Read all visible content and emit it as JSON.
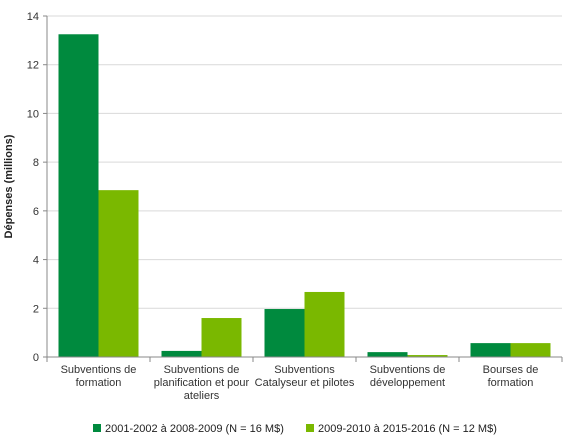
{
  "chart_data": {
    "type": "bar",
    "title": "",
    "xlabel": "",
    "ylabel": "Dépenses (millions)",
    "ylim": [
      0,
      14
    ],
    "yticks": [
      0,
      2,
      4,
      6,
      8,
      10,
      12,
      14
    ],
    "grid": true,
    "legend_position": "bottom",
    "categories": [
      [
        "Subventions de",
        "formation"
      ],
      [
        "Subventions de",
        "planification et pour",
        "ateliers"
      ],
      [
        "Subventions",
        "Catalyseur et pilotes"
      ],
      [
        "Subventions de",
        "développement"
      ],
      [
        "Bourses de",
        "formation"
      ]
    ],
    "series": [
      {
        "name": "2001-2002 à 2008-2009 (N = 16 M$)",
        "color": "#008a3e",
        "values": [
          13.25,
          0.25,
          1.97,
          0.2,
          0.57
        ]
      },
      {
        "name": "2009-2010 à 2015-2016 (N = 12 M$)",
        "color": "#7ab800",
        "values": [
          6.85,
          1.6,
          2.67,
          0.08,
          0.57
        ]
      }
    ]
  }
}
